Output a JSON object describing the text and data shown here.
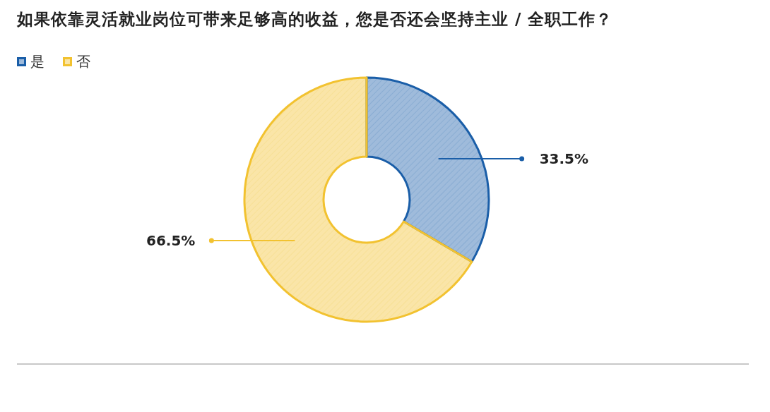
{
  "chart_data": {
    "type": "donut",
    "title": "如果依靠灵活就业岗位可带来足够高的收益，您是否还会坚持主业 / 全职工作？",
    "categories": [
      "是",
      "否"
    ],
    "values": [
      33.5,
      66.5
    ],
    "colors": [
      "#1a5ea8",
      "#f2c230"
    ],
    "value_labels": [
      "33.5%",
      "66.5%"
    ],
    "legend": "top left"
  }
}
